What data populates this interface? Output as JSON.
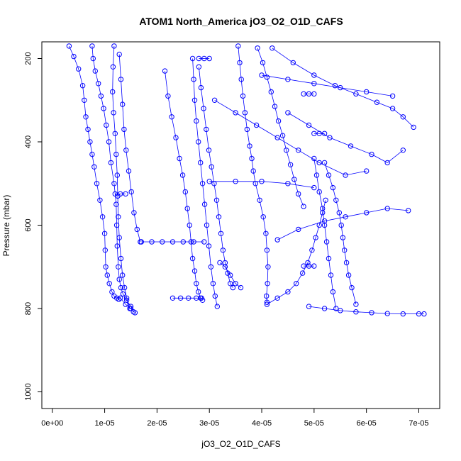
{
  "chart_data": {
    "type": "scatter",
    "title": "ATOM1 North_America jO3_O2_O1D_CAFS",
    "xlabel": "jO3_O2_O1D_CAFS",
    "ylabel": "Pressure (mbar)",
    "xlim": [
      -2e-06,
      7.4e-05
    ],
    "ylim": [
      1040,
      160
    ],
    "y_reversed": true,
    "x_ticks": [
      0,
      1e-05,
      2e-05,
      3e-05,
      4e-05,
      5e-05,
      6e-05,
      7e-05
    ],
    "x_tick_labels": [
      "0e+00",
      "1e-05",
      "2e-05",
      "3e-05",
      "4e-05",
      "5e-05",
      "6e-05",
      "7e-05"
    ],
    "y_ticks": [
      200,
      400,
      600,
      800,
      1000
    ],
    "y_tick_labels": [
      "200",
      "400",
      "600",
      "800",
      "1000"
    ],
    "marker": "open-circle",
    "connected": true,
    "grid": false,
    "color": "#0000ff",
    "series": [
      {
        "x": [
          3.2e-06,
          4.1e-06,
          5e-06,
          5.8e-06,
          6.1e-06,
          6.4e-06,
          6.8e-06,
          7.2e-06,
          7.6e-06,
          8e-06,
          8.5e-06,
          9.1e-06,
          9.6e-06,
          1e-05,
          1.01e-05,
          1.02e-05,
          1.05e-05,
          1.09e-05,
          1.14e-05,
          1.18e-05,
          1.23e-05,
          1.27e-05,
          1.3e-05,
          1.4e-05,
          1.5e-05,
          1.58e-05
        ],
        "y": [
          170,
          195,
          225,
          265,
          300,
          340,
          370,
          400,
          430,
          460,
          500,
          540,
          580,
          620,
          660,
          700,
          720,
          740,
          760,
          770,
          775,
          778,
          775,
          790,
          800,
          810
        ]
      },
      {
        "x": [
          7.6e-06,
          7.8e-06,
          8.2e-06,
          8.8e-06,
          9.3e-06,
          9.8e-06,
          1.03e-05,
          1.08e-05,
          1.12e-05,
          1.18e-05,
          1.22e-05,
          1.23e-05,
          1.24e-05,
          1.26e-05,
          1.28e-05,
          1.31e-05,
          1.35e-05,
          1.42e-05,
          1.5e-05,
          1.55e-05
        ],
        "y": [
          170,
          200,
          230,
          260,
          290,
          320,
          360,
          400,
          450,
          500,
          550,
          600,
          650,
          700,
          730,
          750,
          765,
          780,
          795,
          808
        ]
      },
      {
        "x": [
          1.18e-05,
          1.16e-05,
          1.15e-05,
          1.17e-05,
          1.2e-05,
          1.22e-05,
          1.24e-05,
          1.25e-05,
          1.26e-05,
          1.28e-05,
          1.31e-05,
          1.34e-05,
          1.38e-05,
          1.42e-05,
          1.48e-05
        ],
        "y": [
          170,
          220,
          280,
          330,
          380,
          430,
          480,
          530,
          580,
          630,
          680,
          720,
          750,
          775,
          800
        ]
      },
      {
        "x": [
          1.28e-05,
          1.31e-05,
          1.34e-05,
          1.37e-05,
          1.41e-05,
          1.46e-05,
          1.51e-05,
          1.56e-05,
          1.62e-05,
          1.68e-05
        ],
        "y": [
          190,
          250,
          310,
          370,
          420,
          470,
          520,
          570,
          610,
          640
        ]
      },
      {
        "x": [
          2.15e-05,
          2.21e-05,
          2.28e-05,
          2.36e-05,
          2.43e-05,
          2.49e-05,
          2.54e-05,
          2.58e-05,
          2.62e-05,
          2.65e-05,
          2.68e-05,
          2.72e-05,
          2.75e-05,
          2.79e-05,
          2.83e-05,
          2.87e-05
        ],
        "y": [
          230,
          290,
          340,
          390,
          440,
          480,
          520,
          560,
          600,
          640,
          680,
          710,
          740,
          760,
          775,
          780
        ]
      },
      {
        "x": [
          2.68e-05,
          2.7e-05,
          2.72e-05,
          2.75e-05,
          2.79e-05,
          2.83e-05,
          2.87e-05,
          2.91e-05,
          2.95e-05,
          2.99e-05,
          3.03e-05,
          3.07e-05,
          3.11e-05,
          3.15e-05
        ],
        "y": [
          200,
          250,
          300,
          350,
          400,
          450,
          500,
          550,
          600,
          650,
          700,
          740,
          770,
          795
        ]
      },
      {
        "x": [
          2.8e-05,
          2.84e-05,
          2.89e-05,
          2.94e-05,
          2.99e-05,
          3.04e-05,
          3.09e-05,
          3.14e-05,
          3.18e-05,
          3.22e-05,
          3.26e-05,
          3.3e-05,
          3.35e-05,
          3.4e-05,
          3.45e-05
        ],
        "y": [
          220,
          270,
          320,
          370,
          420,
          460,
          500,
          540,
          580,
          620,
          660,
          690,
          715,
          740,
          750
        ]
      },
      {
        "x": [
          3.55e-05,
          3.58e-05,
          3.61e-05,
          3.64e-05,
          3.68e-05,
          3.72e-05,
          3.77e-05,
          3.81e-05,
          3.84e-05,
          3.88e-05,
          3.96e-05,
          4.03e-05,
          4.08e-05,
          4.1e-05,
          4.12e-05,
          4.11e-05,
          4.09e-05,
          4.1e-05
        ],
        "y": [
          170,
          210,
          250,
          290,
          330,
          370,
          410,
          440,
          470,
          500,
          540,
          580,
          620,
          660,
          700,
          740,
          770,
          785
        ]
      },
      {
        "x": [
          4.1e-05,
          4.3e-05,
          4.5e-05,
          4.66e-05,
          4.78e-05,
          4.88e-05,
          4.96e-05,
          5.03e-05,
          5.1e-05,
          5.16e-05,
          5.22e-05
        ],
        "y": [
          790,
          775,
          760,
          740,
          715,
          690,
          660,
          630,
          600,
          570,
          540
        ]
      },
      {
        "x": [
          3.92e-05,
          4.02e-05,
          4.1e-05,
          4.18e-05,
          4.25e-05,
          4.32e-05,
          4.4e-05,
          4.47e-05,
          4.55e-05,
          4.62e-05,
          4.7e-05,
          4.8e-05
        ],
        "y": [
          175,
          210,
          245,
          280,
          315,
          350,
          385,
          420,
          455,
          490,
          525,
          555
        ]
      },
      {
        "x": [
          5.2e-05,
          5.28e-05,
          5.36e-05,
          5.42e-05,
          5.48e-05,
          5.52e-05,
          5.55e-05,
          5.58e-05,
          5.62e-05,
          5.66e-05,
          5.72e-05,
          5.8e-05
        ],
        "y": [
          450,
          480,
          510,
          540,
          570,
          600,
          630,
          660,
          690,
          720,
          750,
          790
        ]
      },
      {
        "x": [
          5e-05,
          5.05e-05,
          5.1e-05,
          5.16e-05,
          5.2e-05,
          5.24e-05,
          5.28e-05,
          5.32e-05,
          5.36e-05,
          5.42e-05
        ],
        "y": [
          440,
          480,
          520,
          560,
          600,
          640,
          680,
          720,
          760,
          800
        ]
      },
      {
        "x": [
          4.9e-05,
          5.2e-05,
          5.5e-05,
          5.8e-05,
          6.1e-05,
          6.4e-05,
          6.7e-05,
          7e-05,
          7.1e-05
        ],
        "y": [
          795,
          800,
          805,
          808,
          810,
          812,
          813,
          813,
          813
        ]
      },
      {
        "x": [
          4.3e-05,
          4.7e-05,
          5.2e-05,
          5.6e-05,
          6e-05,
          6.4e-05,
          6.8e-05
        ],
        "y": [
          635,
          610,
          590,
          580,
          570,
          560,
          565
        ]
      },
      {
        "x": [
          4.2e-05,
          4.6e-05,
          5e-05,
          5.4e-05,
          5.8e-05,
          6.2e-05,
          6.5e-05,
          6.7e-05,
          6.9e-05
        ],
        "y": [
          175,
          210,
          240,
          265,
          285,
          305,
          320,
          340,
          365
        ]
      },
      {
        "x": [
          4.5e-05,
          4.9e-05,
          5.3e-05,
          5.7e-05,
          6.1e-05,
          6.4e-05,
          6.7e-05
        ],
        "y": [
          330,
          360,
          390,
          410,
          430,
          450,
          420
        ]
      },
      {
        "x": [
          1.7e-05,
          1.9e-05,
          2.1e-05,
          2.3e-05,
          2.5e-05,
          2.7e-05,
          2.9e-05
        ],
        "y": [
          640,
          640,
          640,
          640,
          640,
          640,
          640
        ]
      },
      {
        "x": [
          2.3e-05,
          2.45e-05,
          2.6e-05,
          2.75e-05,
          2.85e-05
        ],
        "y": [
          775,
          775,
          775,
          775,
          775
        ]
      },
      {
        "x": [
          3.2e-05,
          3.3e-05,
          3.4e-05,
          3.5e-05,
          3.6e-05
        ],
        "y": [
          690,
          700,
          720,
          740,
          750
        ]
      },
      {
        "x": [
          2.8e-05,
          2.9e-05,
          3e-05
        ],
        "y": [
          200,
          200,
          200
        ]
      },
      {
        "x": [
          3e-05,
          3.5e-05,
          4e-05,
          4.5e-05,
          5e-05
        ],
        "y": [
          495,
          495,
          495,
          500,
          510
        ]
      },
      {
        "x": [
          4e-05,
          4.5e-05,
          5e-05,
          5.5e-05,
          6e-05,
          6.5e-05
        ],
        "y": [
          240,
          250,
          260,
          270,
          280,
          290
        ]
      },
      {
        "x": [
          3.1e-05,
          3.5e-05,
          3.9e-05,
          4.3e-05,
          4.7e-05,
          5.1e-05,
          5.6e-05,
          6e-05
        ],
        "y": [
          300,
          330,
          360,
          390,
          420,
          450,
          480,
          470
        ]
      },
      {
        "x": [
          5e-05,
          5.1e-05,
          5.2e-05
        ],
        "y": [
          380,
          380,
          380
        ]
      },
      {
        "x": [
          1.2e-05,
          1.3e-05,
          1.4e-05
        ],
        "y": [
          525,
          525,
          525
        ]
      },
      {
        "x": [
          4.8e-05,
          4.9e-05,
          5e-05
        ],
        "y": [
          698,
          698,
          698
        ]
      },
      {
        "x": [
          4.8e-05,
          4.9e-05,
          5e-05
        ],
        "y": [
          285,
          285,
          285
        ]
      }
    ]
  }
}
